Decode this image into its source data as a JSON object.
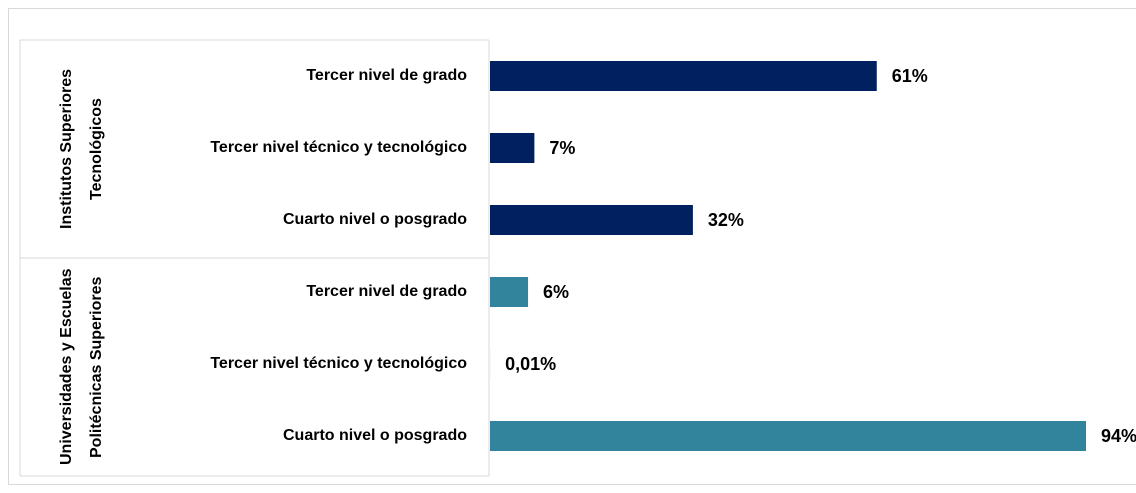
{
  "chart_data": {
    "type": "bar",
    "orientation": "horizontal",
    "groups": [
      {
        "name": "Institutos Superiores Tecnológicos",
        "color": "#002060",
        "categories": [
          "Tercer nivel de grado",
          "Tercer nivel técnico y tecnológico",
          "Cuarto nivel o posgrado"
        ],
        "values": [
          61,
          7,
          32
        ],
        "value_labels": [
          "61%",
          "7%",
          "32%"
        ]
      },
      {
        "name": "Universidades y Escuelas Politécnicas Superiores",
        "color": "#31849b",
        "categories": [
          "Tercer nivel de grado",
          "Tercer nivel técnico y tecnológico",
          "Cuarto nivel o posgrado"
        ],
        "values": [
          6,
          0.01,
          94
        ],
        "value_labels": [
          "6%",
          "0,01%",
          "94%"
        ]
      }
    ]
  }
}
